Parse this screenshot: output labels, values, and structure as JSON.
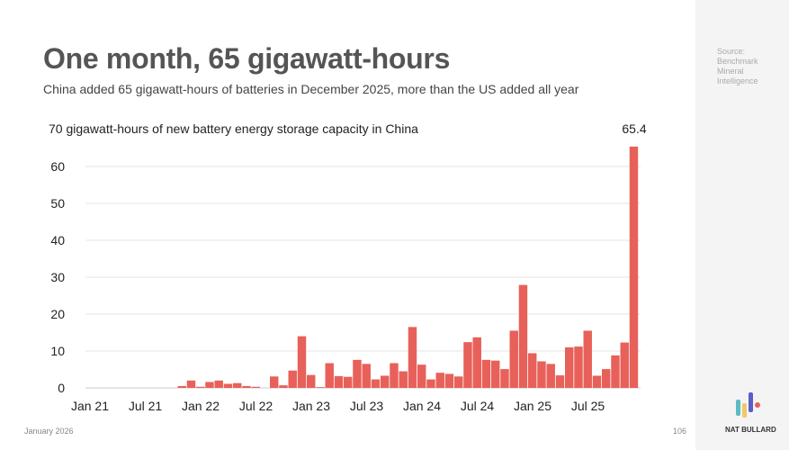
{
  "title": "One month, 65 gigawatt-hours",
  "subtitle": "China added 65 gigawatt-hours of batteries in December 2025, more than the US added all year",
  "source": "Source: Benchmark Mineral Intelligence",
  "footer": {
    "date": "January 2026",
    "page": "106",
    "brand": "NAT BULLARD"
  },
  "colors": {
    "bar": "#e8605a"
  },
  "chart_data": {
    "type": "bar",
    "title": "70 gigawatt-hours of new battery energy storage capacity in China",
    "ylim": [
      0,
      70
    ],
    "yticks": [
      0,
      10,
      20,
      30,
      40,
      50,
      60
    ],
    "xtick_labels": [
      "Jan 21",
      "Jul 21",
      "Jan 22",
      "Jul 22",
      "Jan 23",
      "Jul 23",
      "Jan 24",
      "Jul 24",
      "Jan 25",
      "Jul 25"
    ],
    "annotation": "65.4",
    "values": [
      0,
      0,
      0,
      0,
      0,
      0,
      0,
      0,
      0,
      0,
      0.5,
      2.0,
      0.3,
      1.6,
      2.0,
      1.1,
      1.3,
      0.5,
      0.3,
      0,
      3.1,
      0.7,
      4.7,
      14.0,
      3.5,
      0.2,
      6.7,
      3.2,
      3.0,
      7.6,
      6.5,
      2.3,
      3.3,
      6.7,
      4.5,
      16.5,
      6.3,
      2.3,
      4.1,
      3.8,
      3.1,
      12.4,
      13.7,
      7.6,
      7.4,
      5.1,
      15.5,
      27.9,
      9.4,
      7.2,
      6.5,
      3.4,
      11.0,
      11.2,
      15.5,
      3.3,
      5.1,
      8.8,
      12.3,
      65.4
    ]
  }
}
